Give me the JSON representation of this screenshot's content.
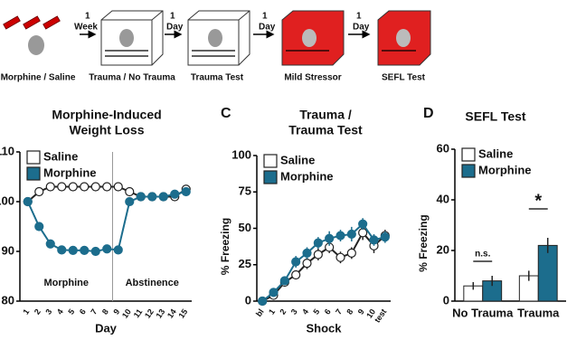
{
  "schematic": {
    "steps": [
      "Morphine / Saline",
      "Trauma / No Trauma",
      "Trauma Test",
      "Mild Stressor",
      "SEFL Test"
    ],
    "arrows": [
      [
        "1",
        "Week"
      ],
      [
        "1",
        "Day"
      ],
      [
        "1",
        "Day"
      ],
      [
        "1",
        "Day"
      ]
    ]
  },
  "panel_labels": [
    "C",
    "D"
  ],
  "chart_data": [
    {
      "type": "line",
      "title": [
        "Morphine-Induced",
        "Weight Loss"
      ],
      "x_label": "Day",
      "x": [
        1,
        2,
        3,
        4,
        5,
        6,
        7,
        8,
        9,
        10,
        11,
        12,
        13,
        14,
        15
      ],
      "xlim": [
        0.3,
        15.5
      ],
      "ylim": [
        80,
        110
      ],
      "yticks": [
        80,
        90,
        100,
        110
      ],
      "legend": "upper left",
      "series": [
        {
          "name": "Saline",
          "color": "#ffffff",
          "values": [
            100,
            102,
            103,
            103,
            103,
            103,
            103,
            103,
            103,
            102,
            101,
            101,
            101,
            101,
            102.5
          ]
        },
        {
          "name": "Morphine",
          "color": "#1c6d8d",
          "values": [
            100,
            95,
            91.5,
            90.3,
            90.2,
            90.2,
            90,
            90.5,
            90.3,
            100,
            101,
            101,
            101,
            101.5,
            102
          ]
        }
      ],
      "divider_x": 8.5,
      "annotations": [
        "Morphine",
        "Abstinence"
      ]
    },
    {
      "type": "line",
      "title": [
        "Trauma /",
        "Trauma Test"
      ],
      "x_label": "Shock",
      "y_label": "% Freezing",
      "categories": [
        "bl",
        "1",
        "2",
        "3",
        "4",
        "5",
        "6",
        "7",
        "8",
        "9",
        "10",
        "test"
      ],
      "ylim": [
        0,
        100
      ],
      "yticks": [
        0,
        25,
        50,
        75,
        100
      ],
      "legend": "upper left",
      "series": [
        {
          "name": "Saline",
          "color": "#ffffff",
          "values": [
            0,
            4,
            13,
            18,
            26,
            32,
            37,
            30,
            33,
            47,
            38,
            45
          ],
          "errors": [
            1,
            2,
            3,
            3,
            4,
            4,
            4,
            4,
            4,
            5,
            5,
            4
          ]
        },
        {
          "name": "Morphine",
          "color": "#1c6d8d",
          "values": [
            0,
            6,
            14,
            27,
            33,
            40,
            43,
            45,
            46,
            53,
            42,
            44
          ],
          "errors": [
            1,
            2,
            3,
            4,
            4,
            4,
            5,
            4,
            5,
            4,
            4,
            4
          ]
        }
      ]
    },
    {
      "type": "bar",
      "title": "SEFL Test",
      "y_label": "% Freezing",
      "categories": [
        "No Trauma",
        "Trauma"
      ],
      "ylim": [
        0,
        60
      ],
      "yticks": [
        0,
        20,
        40,
        60
      ],
      "legend": "upper left",
      "series": [
        {
          "name": "Saline",
          "color": "#ffffff",
          "values": [
            6,
            10
          ],
          "errors": [
            1.5,
            2
          ]
        },
        {
          "name": "Morphine",
          "color": "#1c6d8d",
          "values": [
            8,
            22
          ],
          "errors": [
            2,
            3
          ]
        }
      ],
      "annotations": [
        "n.s.",
        "*"
      ]
    }
  ]
}
